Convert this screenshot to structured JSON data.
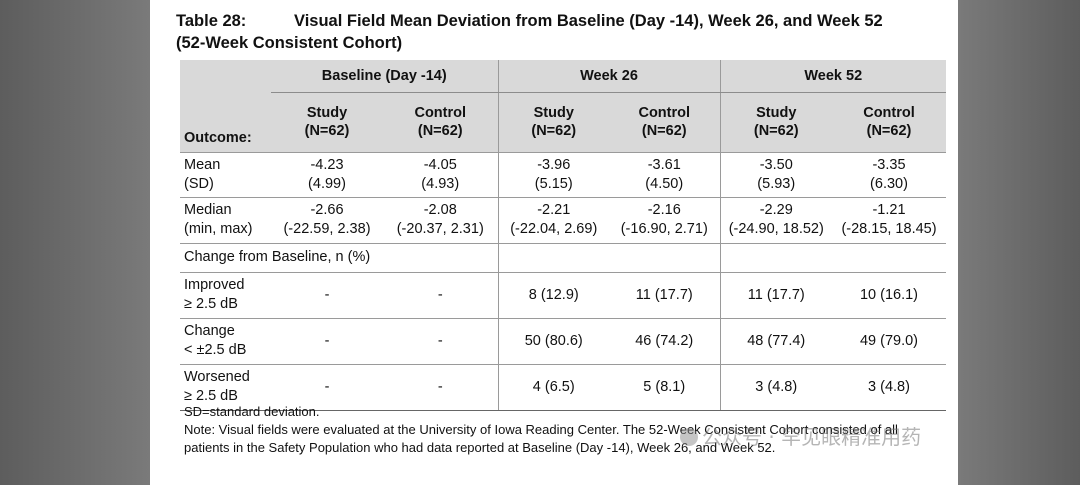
{
  "title": {
    "table_number": "Table 28:",
    "line1": "Visual Field Mean Deviation from Baseline (Day -14), Week 26, and Week 52",
    "line2": "(52-Week Consistent Cohort)"
  },
  "groups": [
    "Baseline (Day -14)",
    "Week 26",
    "Week 52"
  ],
  "outcome_header": "Outcome:",
  "subheaders": [
    [
      "Study",
      "(N=62)"
    ],
    [
      "Control",
      "(N=62)"
    ],
    [
      "Study",
      "(N=62)"
    ],
    [
      "Control",
      "(N=62)"
    ],
    [
      "Study",
      "(N=62)"
    ],
    [
      "Control",
      "(N=62)"
    ]
  ],
  "rows": {
    "mean": {
      "label": [
        "Mean",
        "(SD)"
      ],
      "cells": [
        [
          "-4.23",
          "(4.99)"
        ],
        [
          "-4.05",
          "(4.93)"
        ],
        [
          "-3.96",
          "(5.15)"
        ],
        [
          "-3.61",
          "(4.50)"
        ],
        [
          "-3.50",
          "(5.93)"
        ],
        [
          "-3.35",
          "(6.30)"
        ]
      ]
    },
    "median": {
      "label": [
        "Median",
        "(min, max)"
      ],
      "cells": [
        [
          "-2.66",
          "(-22.59, 2.38)"
        ],
        [
          "-2.08",
          "(-20.37, 2.31)"
        ],
        [
          "-2.21",
          "(-22.04, 2.69)"
        ],
        [
          "-2.16",
          "(-16.90, 2.71)"
        ],
        [
          "-2.29",
          "(-24.90, 18.52)"
        ],
        [
          "-1.21",
          "(-28.15, 18.45)"
        ]
      ]
    },
    "change_banner": "Change from Baseline, n (%)",
    "improved": {
      "label": [
        "Improved",
        "≥ 2.5 dB"
      ],
      "cells": [
        "-",
        "-",
        "8 (12.9)",
        "11 (17.7)",
        "11 (17.7)",
        "10 (16.1)"
      ]
    },
    "change": {
      "label": [
        "Change",
        "< ±2.5 dB"
      ],
      "cells": [
        "-",
        "-",
        "50 (80.6)",
        "46 (74.2)",
        "48 (77.4)",
        "49 (79.0)"
      ]
    },
    "worsened": {
      "label": [
        "Worsened",
        "≥ 2.5 dB"
      ],
      "cells": [
        "-",
        "-",
        "4 (6.5)",
        "5 (8.1)",
        "3 (4.8)",
        "3 (4.8)"
      ]
    }
  },
  "notes": {
    "sd": "SD=standard deviation.",
    "note": "Note: Visual fields were evaluated at the University of Iowa Reading Center. The 52-Week Consistent Cohort consisted of all patients in the Safety Population who had data reported at Baseline (Day -14), Week 26, and Week 52."
  },
  "watermark": "公众号 · 罕见眼精准用药"
}
